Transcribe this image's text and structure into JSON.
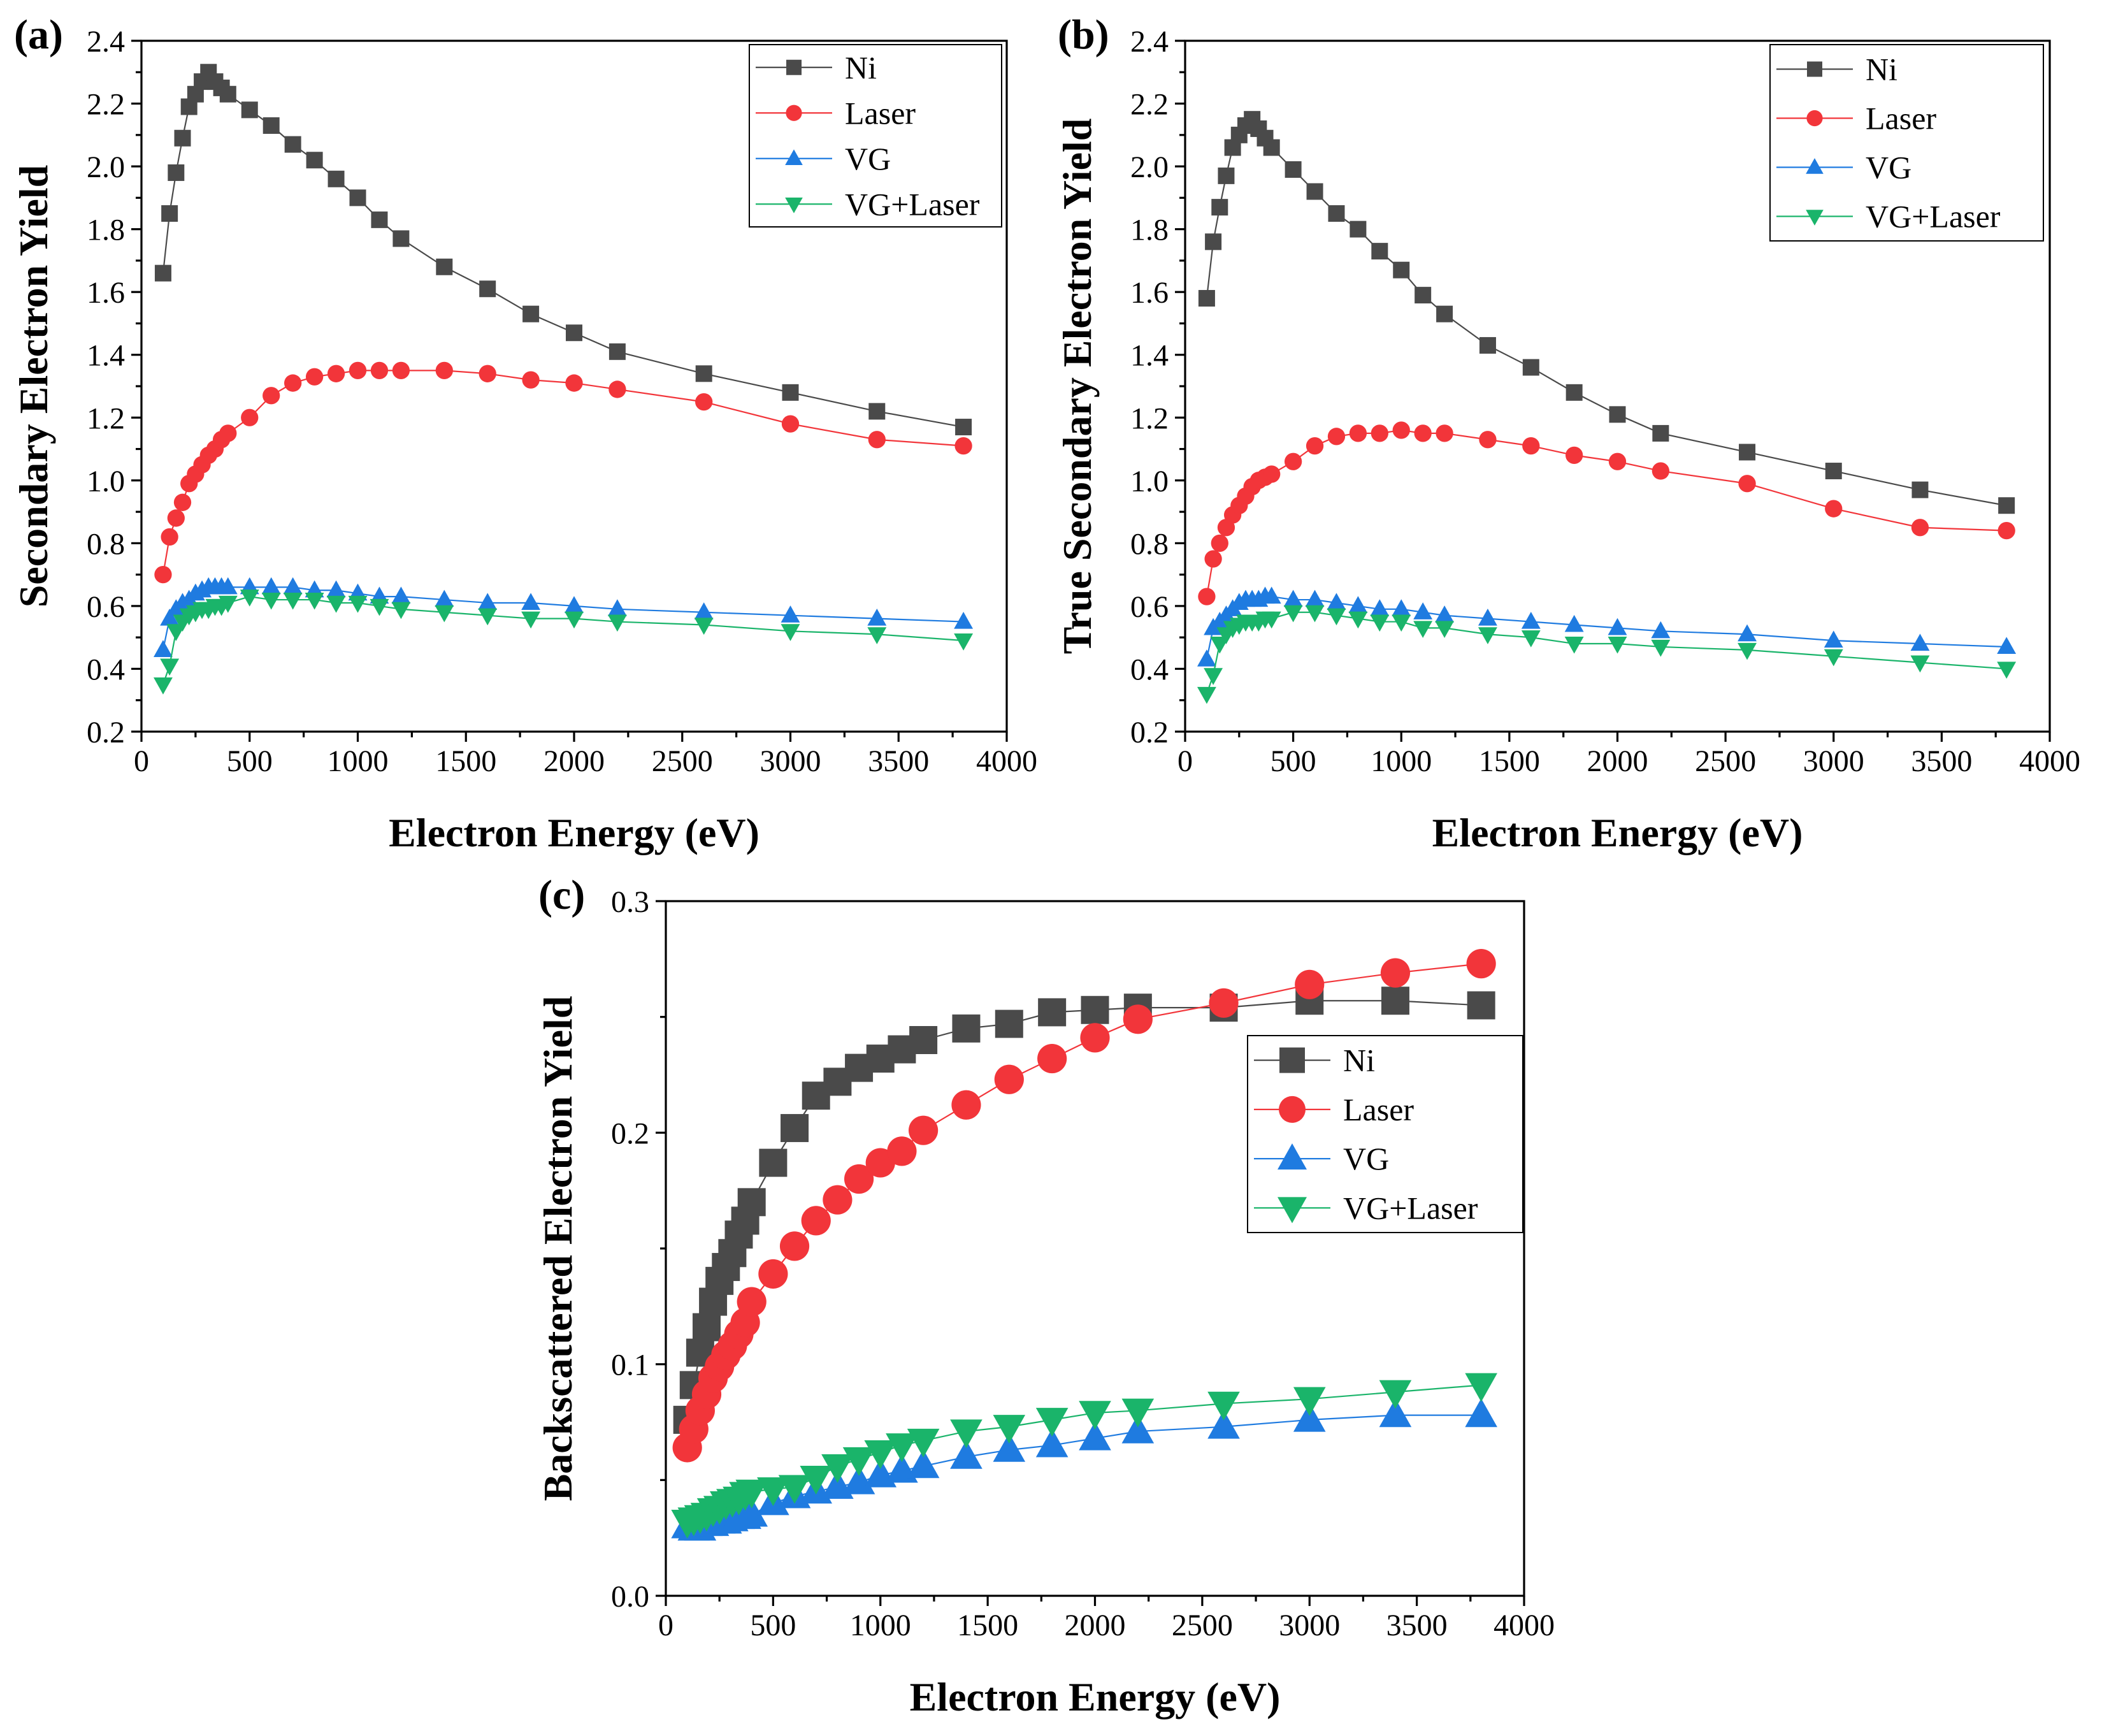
{
  "colors": {
    "Ni": "#4a4a4a",
    "Laser": "#f2353a",
    "VG": "#1f7be0",
    "VG+Laser": "#1ab46a"
  },
  "chart_data": [
    {
      "id": "a",
      "type": "line",
      "panel_label": "(a)",
      "xlabel": "Electron Energy (eV)",
      "ylabel": "Secondary Electron Yield",
      "xlim": [
        0,
        4000
      ],
      "ylim": [
        0.2,
        2.4
      ],
      "xticks": [
        0,
        500,
        1000,
        1500,
        2000,
        2500,
        3000,
        3500,
        4000
      ],
      "xtick_labels": [
        "0",
        "500",
        "1000",
        "1500",
        "2000",
        "2500",
        "3000",
        "3500",
        "4000"
      ],
      "yticks": [
        0.2,
        0.4,
        0.6,
        0.8,
        1.0,
        1.2,
        1.4,
        1.6,
        1.8,
        2.0,
        2.2,
        2.4
      ],
      "ytick_labels": [
        "0.2",
        "0.4",
        "0.6",
        "0.8",
        "1.0",
        "1.2",
        "1.4",
        "1.6",
        "1.8",
        "2.0",
        "2.2",
        "2.4"
      ],
      "legend": [
        "Ni",
        "Laser",
        "VG",
        "VG+Laser"
      ],
      "legend_position": "top-right",
      "x": [
        100,
        130,
        160,
        190,
        220,
        250,
        280,
        310,
        340,
        370,
        400,
        500,
        600,
        700,
        800,
        900,
        1000,
        1100,
        1200,
        1400,
        1600,
        1800,
        2000,
        2200,
        2600,
        3000,
        3400,
        3800
      ],
      "series": [
        {
          "name": "Ni",
          "marker": "square",
          "values": [
            1.66,
            1.85,
            1.98,
            2.09,
            2.19,
            2.23,
            2.27,
            2.3,
            2.27,
            2.25,
            2.23,
            2.18,
            2.13,
            2.07,
            2.02,
            1.96,
            1.9,
            1.83,
            1.77,
            1.68,
            1.61,
            1.53,
            1.47,
            1.41,
            1.34,
            1.28,
            1.22,
            1.17
          ]
        },
        {
          "name": "Laser",
          "marker": "circle",
          "values": [
            0.7,
            0.82,
            0.88,
            0.93,
            0.99,
            1.02,
            1.05,
            1.08,
            1.1,
            1.13,
            1.15,
            1.2,
            1.27,
            1.31,
            1.33,
            1.34,
            1.35,
            1.35,
            1.35,
            1.35,
            1.34,
            1.32,
            1.31,
            1.29,
            1.25,
            1.18,
            1.13,
            1.11
          ]
        },
        {
          "name": "VG",
          "marker": "triangle-up",
          "values": [
            0.46,
            0.56,
            0.59,
            0.61,
            0.62,
            0.64,
            0.65,
            0.66,
            0.66,
            0.66,
            0.66,
            0.66,
            0.66,
            0.66,
            0.65,
            0.65,
            0.64,
            0.63,
            0.63,
            0.62,
            0.61,
            0.61,
            0.6,
            0.59,
            0.58,
            0.57,
            0.56,
            0.55
          ]
        },
        {
          "name": "VG+Laser",
          "marker": "triangle-down",
          "values": [
            0.35,
            0.41,
            0.52,
            0.55,
            0.57,
            0.58,
            0.59,
            0.59,
            0.6,
            0.6,
            0.61,
            0.63,
            0.62,
            0.62,
            0.62,
            0.61,
            0.61,
            0.6,
            0.59,
            0.58,
            0.57,
            0.56,
            0.56,
            0.55,
            0.54,
            0.52,
            0.51,
            0.49
          ]
        }
      ]
    },
    {
      "id": "b",
      "type": "line",
      "panel_label": "(b)",
      "xlabel": "Electron Energy (eV)",
      "ylabel": "True Secondary Electron Yield",
      "xlim": [
        0,
        4000
      ],
      "ylim": [
        0.2,
        2.4
      ],
      "xticks": [
        0,
        500,
        1000,
        1500,
        2000,
        2500,
        3000,
        3500,
        4000
      ],
      "xtick_labels": [
        "0",
        "500",
        "1000",
        "1500",
        "2000",
        "2500",
        "3000",
        "3500",
        "4000"
      ],
      "yticks": [
        0.2,
        0.4,
        0.6,
        0.8,
        1.0,
        1.2,
        1.4,
        1.6,
        1.8,
        2.0,
        2.2,
        2.4
      ],
      "ytick_labels": [
        "0.2",
        "0.4",
        "0.6",
        "0.8",
        "1.0",
        "1.2",
        "1.4",
        "1.6",
        "1.8",
        "2.0",
        "2.2",
        "2.4"
      ],
      "legend": [
        "Ni",
        "Laser",
        "VG",
        "VG+Laser"
      ],
      "legend_position": "top-right",
      "x": [
        100,
        130,
        160,
        190,
        220,
        250,
        280,
        310,
        340,
        370,
        400,
        500,
        600,
        700,
        800,
        900,
        1000,
        1100,
        1200,
        1400,
        1600,
        1800,
        2000,
        2200,
        2600,
        3000,
        3400,
        3800
      ],
      "series": [
        {
          "name": "Ni",
          "marker": "square",
          "values": [
            1.58,
            1.76,
            1.87,
            1.97,
            2.06,
            2.1,
            2.13,
            2.15,
            2.12,
            2.09,
            2.06,
            1.99,
            1.92,
            1.85,
            1.8,
            1.73,
            1.67,
            1.59,
            1.53,
            1.43,
            1.36,
            1.28,
            1.21,
            1.15,
            1.09,
            1.03,
            0.97,
            0.92
          ]
        },
        {
          "name": "Laser",
          "marker": "circle",
          "values": [
            0.63,
            0.75,
            0.8,
            0.85,
            0.89,
            0.92,
            0.95,
            0.98,
            1.0,
            1.01,
            1.02,
            1.06,
            1.11,
            1.14,
            1.15,
            1.15,
            1.16,
            1.15,
            1.15,
            1.13,
            1.11,
            1.08,
            1.06,
            1.03,
            0.99,
            0.91,
            0.85,
            0.84
          ]
        },
        {
          "name": "VG",
          "marker": "triangle-up",
          "values": [
            0.43,
            0.53,
            0.55,
            0.57,
            0.59,
            0.61,
            0.62,
            0.62,
            0.62,
            0.63,
            0.63,
            0.62,
            0.62,
            0.61,
            0.6,
            0.59,
            0.59,
            0.58,
            0.57,
            0.56,
            0.55,
            0.54,
            0.53,
            0.52,
            0.51,
            0.49,
            0.48,
            0.47
          ]
        },
        {
          "name": "VG+Laser",
          "marker": "triangle-down",
          "values": [
            0.32,
            0.38,
            0.48,
            0.51,
            0.53,
            0.54,
            0.55,
            0.55,
            0.55,
            0.56,
            0.56,
            0.58,
            0.58,
            0.57,
            0.56,
            0.55,
            0.55,
            0.53,
            0.53,
            0.51,
            0.5,
            0.48,
            0.48,
            0.47,
            0.46,
            0.44,
            0.42,
            0.4
          ]
        }
      ]
    },
    {
      "id": "c",
      "type": "line",
      "panel_label": "(c)",
      "xlabel": "Electron Energy (eV)",
      "ylabel": "Backscattered Electron Yield",
      "xlim": [
        0,
        4000
      ],
      "ylim": [
        0.0,
        0.3
      ],
      "xticks": [
        0,
        500,
        1000,
        1500,
        2000,
        2500,
        3000,
        3500,
        4000
      ],
      "xtick_labels": [
        "0",
        "500",
        "1000",
        "1500",
        "2000",
        "2500",
        "3000",
        "3500",
        "4000"
      ],
      "yticks": [
        0.0,
        0.1,
        0.2,
        0.3
      ],
      "ytick_labels": [
        "0.0",
        "0.1",
        "0.2",
        "0.3"
      ],
      "legend": [
        "Ni",
        "Laser",
        "VG",
        "VG+Laser"
      ],
      "legend_position": "center-right",
      "x": [
        100,
        130,
        160,
        190,
        220,
        250,
        280,
        310,
        340,
        370,
        400,
        500,
        600,
        700,
        800,
        900,
        1000,
        1100,
        1200,
        1400,
        1600,
        1800,
        2000,
        2200,
        2600,
        3000,
        3400,
        3800
      ],
      "series": [
        {
          "name": "Ni",
          "marker": "square",
          "values": [
            0.076,
            0.091,
            0.105,
            0.116,
            0.127,
            0.136,
            0.142,
            0.148,
            0.156,
            0.162,
            0.17,
            0.187,
            0.202,
            0.216,
            0.222,
            0.228,
            0.232,
            0.236,
            0.24,
            0.245,
            0.247,
            0.252,
            0.253,
            0.254,
            0.254,
            0.257,
            0.257,
            0.255
          ]
        },
        {
          "name": "Laser",
          "marker": "circle",
          "values": [
            0.064,
            0.072,
            0.08,
            0.087,
            0.094,
            0.099,
            0.104,
            0.108,
            0.113,
            0.118,
            0.127,
            0.139,
            0.151,
            0.162,
            0.171,
            0.18,
            0.187,
            0.192,
            0.201,
            0.212,
            0.223,
            0.232,
            0.241,
            0.249,
            0.256,
            0.264,
            0.269,
            0.273
          ]
        },
        {
          "name": "VG",
          "marker": "triangle-up",
          "values": [
            0.03,
            0.029,
            0.029,
            0.031,
            0.031,
            0.032,
            0.032,
            0.033,
            0.034,
            0.034,
            0.035,
            0.04,
            0.043,
            0.045,
            0.047,
            0.049,
            0.052,
            0.054,
            0.056,
            0.06,
            0.063,
            0.065,
            0.068,
            0.071,
            0.073,
            0.076,
            0.078,
            0.078
          ]
        },
        {
          "name": "VG+Laser",
          "marker": "triangle-down",
          "values": [
            0.032,
            0.033,
            0.034,
            0.035,
            0.037,
            0.038,
            0.04,
            0.041,
            0.042,
            0.044,
            0.045,
            0.046,
            0.047,
            0.051,
            0.056,
            0.059,
            0.062,
            0.065,
            0.067,
            0.071,
            0.073,
            0.076,
            0.079,
            0.08,
            0.083,
            0.085,
            0.088,
            0.091
          ]
        }
      ]
    }
  ]
}
